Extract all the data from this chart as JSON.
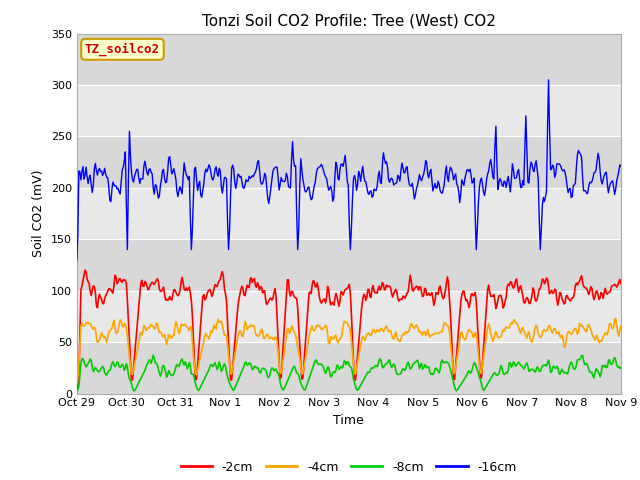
{
  "title": "Tonzi Soil CO2 Profile: Tree (West) CO2",
  "xlabel": "Time",
  "ylabel": "Soil CO2 (mV)",
  "annotation": "TZ_soilco2",
  "annotation_color": "#cc0000",
  "annotation_bg": "#ffffcc",
  "annotation_border": "#cc9900",
  "ylim": [
    0,
    350
  ],
  "yticks": [
    0,
    50,
    100,
    150,
    200,
    250,
    300,
    350
  ],
  "n_days": 11,
  "xtick_labels": [
    "Oct 29",
    "Oct 30",
    "Oct 31",
    "Nov 1",
    "Nov 2",
    "Nov 3",
    "Nov 4",
    "Nov 5",
    "Nov 6",
    "Nov 7",
    "Nov 8",
    "Nov 9"
  ],
  "line_colors": {
    "2cm": "#ff0000",
    "4cm": "#ffa500",
    "8cm": "#00cc00",
    "16cm": "#0000ff"
  },
  "legend_labels": [
    "-2cm",
    "-4cm",
    "-8cm",
    "-16cm"
  ],
  "legend_colors": [
    "#ff0000",
    "#ffa500",
    "#00cc00",
    "#0000ff"
  ],
  "fig_bg": "#ffffff",
  "plot_bg": "#e8e8e8",
  "band_color_light": "#f0f0f0",
  "band_color_dark": "#e0e0e0"
}
